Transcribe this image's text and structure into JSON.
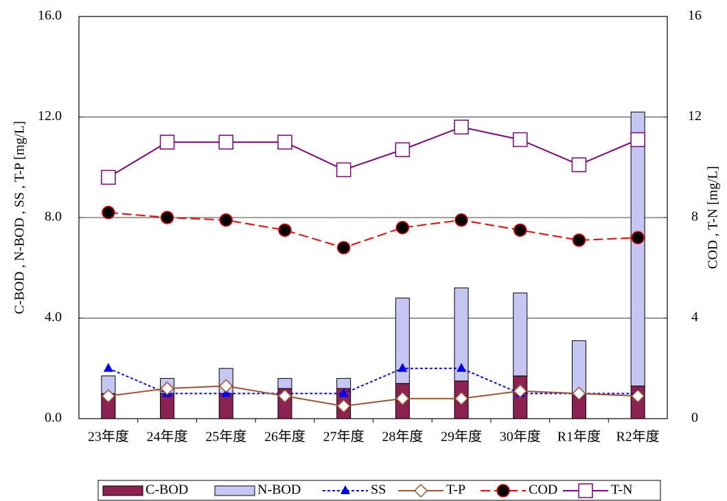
{
  "chart_data": {
    "type": "bar",
    "categories": [
      "23年度",
      "24年度",
      "25年度",
      "26年度",
      "27年度",
      "28年度",
      "29年度",
      "30年度",
      "R1年度",
      "R2年度"
    ],
    "series": [
      {
        "name": "C-BOD",
        "type": "bar",
        "stack": true,
        "color": "#8b2252",
        "values": [
          1.0,
          1.0,
          1.0,
          1.2,
          1.2,
          1.4,
          1.5,
          1.7,
          1.0,
          1.3
        ]
      },
      {
        "name": "N-BOD",
        "type": "bar",
        "stack": true,
        "color": "#c6c6f2",
        "values": [
          0.7,
          0.6,
          1.0,
          0.4,
          0.4,
          3.4,
          3.7,
          3.3,
          2.1,
          10.9
        ]
      },
      {
        "name": "SS",
        "type": "line",
        "dash": "dotted",
        "marker": "triangle",
        "color": "#0000ff",
        "values": [
          2.0,
          1.0,
          1.0,
          1.0,
          1.0,
          2.0,
          2.0,
          1.0,
          1.0,
          1.0
        ]
      },
      {
        "name": "T-P",
        "type": "line",
        "dash": "solid",
        "marker": "diamond",
        "color": "#a0522d",
        "values": [
          0.9,
          1.2,
          1.3,
          0.9,
          0.5,
          0.8,
          0.8,
          1.1,
          1.0,
          0.9
        ]
      },
      {
        "name": "COD",
        "type": "line",
        "dash": "dashed",
        "marker": "circle",
        "color": "#ff0000",
        "axis": "y2",
        "values": [
          8.2,
          8.0,
          7.9,
          7.5,
          6.8,
          7.6,
          7.9,
          7.5,
          7.1,
          7.2
        ]
      },
      {
        "name": "T-N",
        "type": "line",
        "dash": "solid",
        "marker": "square",
        "color": "#800080",
        "axis": "y2",
        "values": [
          9.6,
          11.0,
          11.0,
          11.0,
          9.9,
          10.7,
          11.6,
          11.1,
          10.1,
          11.1
        ]
      }
    ],
    "ylabel": "C-BOD , N-BOD , SS , T-P [mg/L]",
    "y2label": "COD , T-N [mg/L]",
    "ylim": [
      0,
      16
    ],
    "yticks": [
      {
        "value": 0,
        "label": "0.0"
      },
      {
        "value": 4,
        "label": "4.0"
      },
      {
        "value": 8,
        "label": "8.0"
      },
      {
        "value": 12,
        "label": "12.0"
      },
      {
        "value": 16,
        "label": "16.0"
      }
    ],
    "y2lim": [
      0,
      16
    ],
    "y2ticks": [
      0,
      4,
      8,
      12,
      16
    ],
    "grid": true,
    "legend": "bottom"
  }
}
